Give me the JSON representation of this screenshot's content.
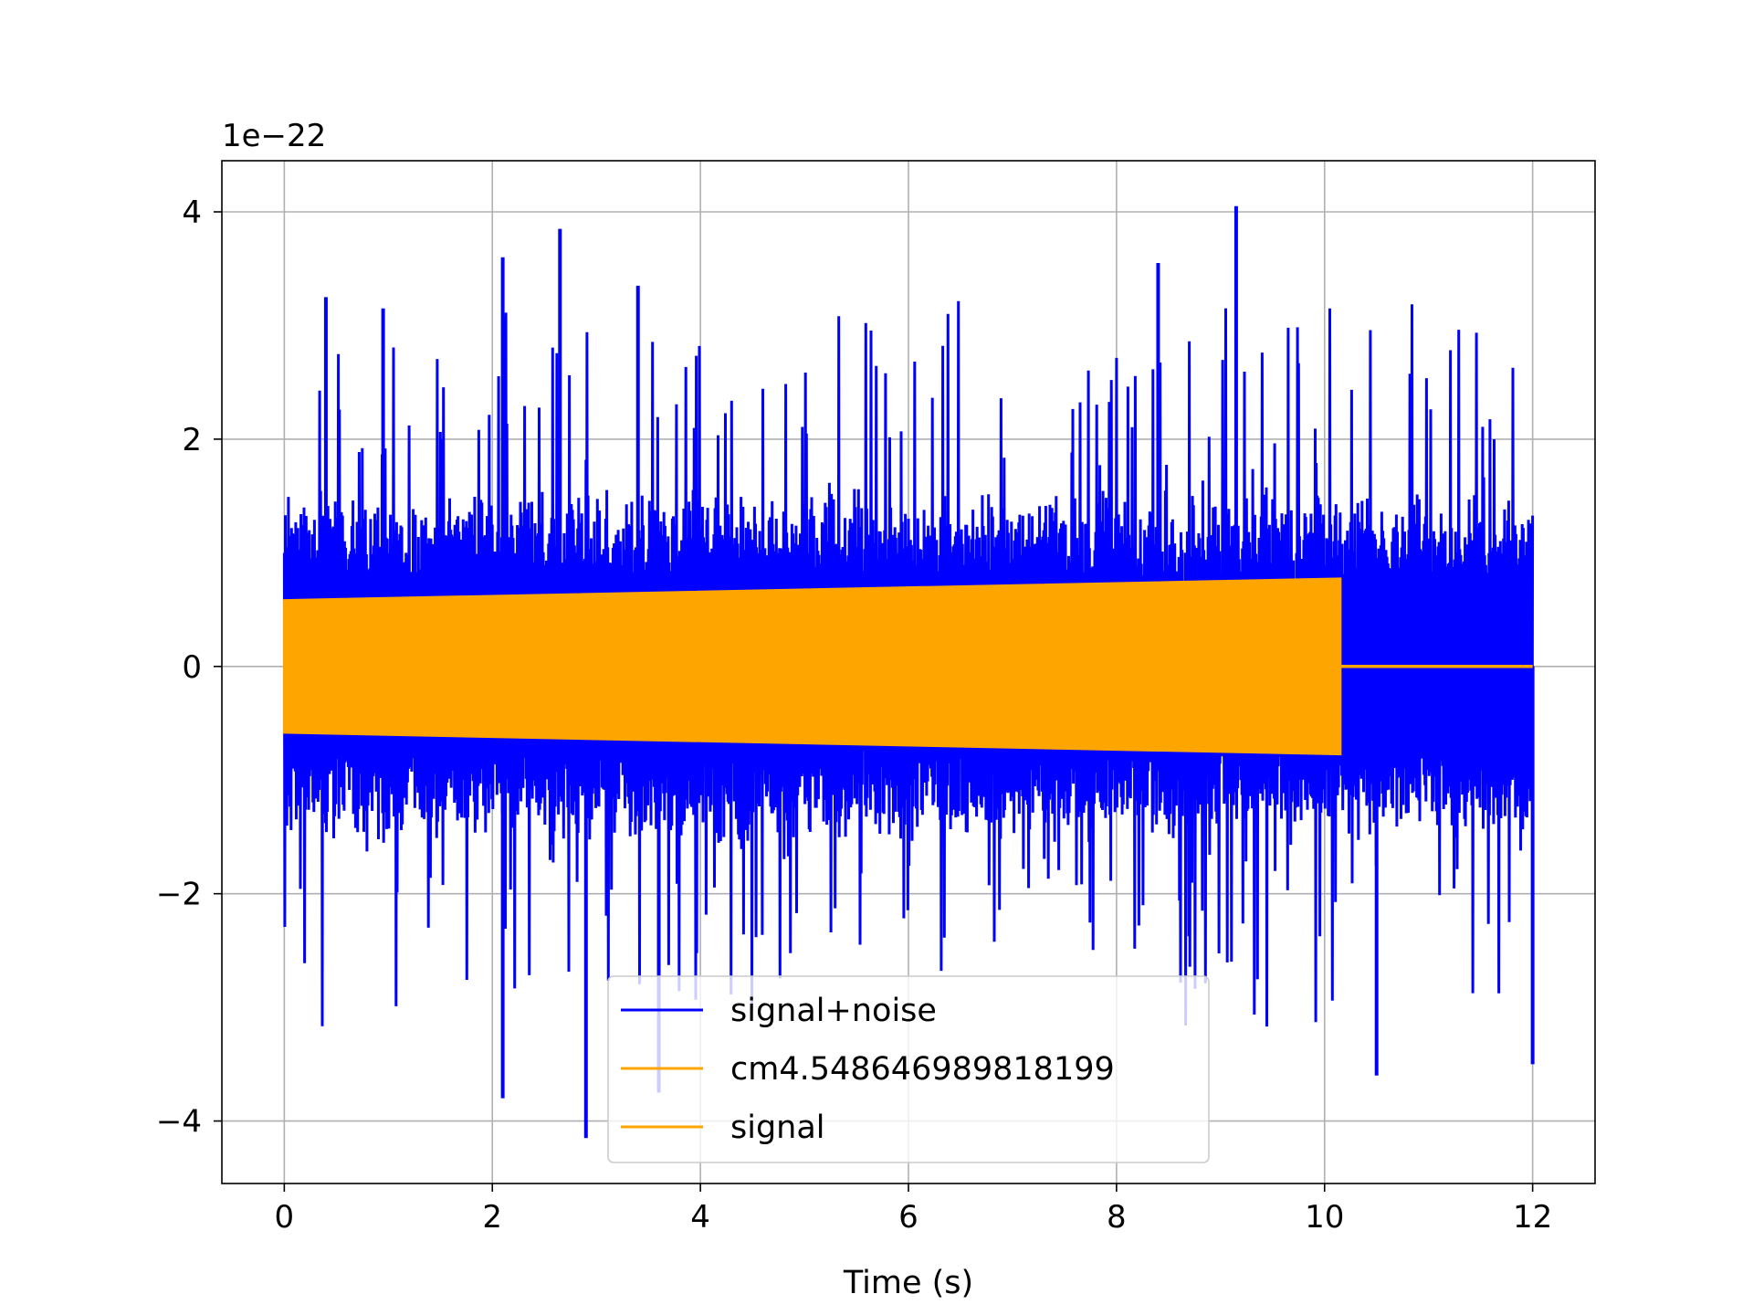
{
  "chart_data": {
    "type": "line",
    "title": "",
    "xlabel": "Time (s)",
    "ylabel": "",
    "offset_label": "1e−22",
    "xlim": [
      -0.6,
      12.6
    ],
    "ylim": [
      -4.55,
      4.45
    ],
    "x_ticks": [
      0,
      2,
      4,
      6,
      8,
      10,
      12
    ],
    "x_tick_labels": [
      "0",
      "2",
      "4",
      "6",
      "8",
      "10",
      "12"
    ],
    "y_ticks": [
      -4,
      -2,
      0,
      2,
      4
    ],
    "y_tick_labels": [
      "−4",
      "−2",
      "0",
      "2",
      "4"
    ],
    "grid": true,
    "legend_position": "lower-center",
    "series": [
      {
        "name": "signal+noise",
        "color": "#0000ff",
        "x_range": [
          0,
          12.0
        ],
        "envelope_typical": [
          -1.6,
          1.6
        ],
        "extremes": [
          {
            "x": 0.4,
            "y": 3.25
          },
          {
            "x": 0.95,
            "y": 3.15
          },
          {
            "x": 2.1,
            "y": 3.6
          },
          {
            "x": 2.65,
            "y": 3.85
          },
          {
            "x": 3.4,
            "y": 3.35
          },
          {
            "x": 9.15,
            "y": 4.05
          },
          {
            "x": 8.4,
            "y": 3.55
          },
          {
            "x": 2.1,
            "y": -3.8
          },
          {
            "x": 2.9,
            "y": -4.15
          },
          {
            "x": 3.6,
            "y": -3.75
          },
          {
            "x": 10.5,
            "y": -3.6
          },
          {
            "x": 12.0,
            "y": -3.5
          }
        ]
      },
      {
        "name": "cm4.548646989818199",
        "color": "#ffa500",
        "x_range": [
          0,
          10.15
        ],
        "amplitude_start": 0.58,
        "amplitude_end": 0.77
      },
      {
        "name": "signal",
        "color": "#ffa500",
        "x_range": [
          0,
          10.15
        ],
        "amplitude_start": 0.58,
        "amplitude_end": 0.77,
        "flat_after": [
          10.15,
          12.0
        ]
      }
    ]
  }
}
